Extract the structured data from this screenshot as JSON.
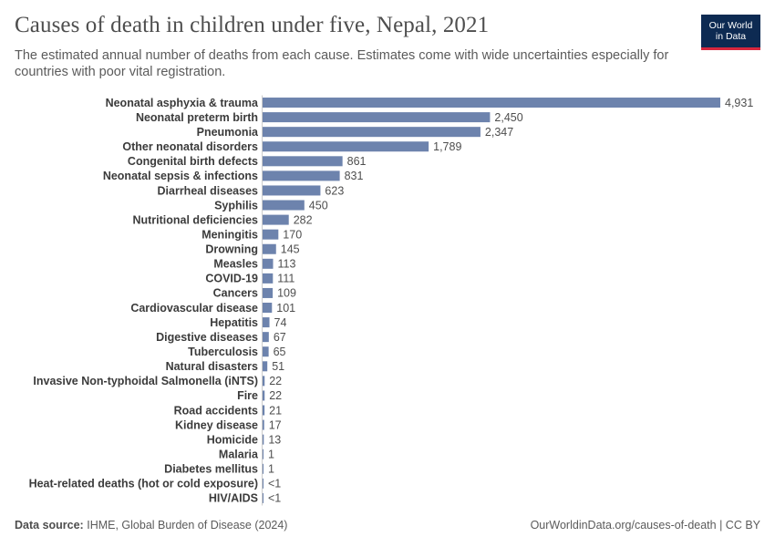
{
  "header": {
    "title": "Causes of death in children under five, Nepal, 2021",
    "subtitle": "The estimated annual number of deaths from each cause. Estimates come with wide uncertainties especially for countries with poor vital registration."
  },
  "logo": {
    "line1": "Our World",
    "line2": "in Data",
    "bg_color": "#0d2a52",
    "accent_color": "#d7263d"
  },
  "footer": {
    "source_label": "Data source:",
    "source_text": "IHME, Global Burden of Disease (2024)",
    "url": "OurWorldinData.org/causes-of-death | CC BY"
  },
  "chart_data": {
    "type": "bar",
    "orientation": "horizontal",
    "title": "Causes of death in children under five, Nepal, 2021",
    "xlabel": "",
    "ylabel": "",
    "bar_color": "#6d83ad",
    "categories": [
      "Neonatal asphyxia & trauma",
      "Neonatal preterm birth",
      "Pneumonia",
      "Other neonatal disorders",
      "Congenital birth defects",
      "Neonatal sepsis & infections",
      "Diarrheal diseases",
      "Syphilis",
      "Nutritional deficiencies",
      "Meningitis",
      "Drowning",
      "Measles",
      "COVID-19",
      "Cancers",
      "Cardiovascular disease",
      "Hepatitis",
      "Digestive diseases",
      "Tuberculosis",
      "Natural disasters",
      "Invasive Non-typhoidal Salmonella (iNTS)",
      "Fire",
      "Road accidents",
      "Kidney disease",
      "Homicide",
      "Malaria",
      "Diabetes mellitus",
      "Heat-related deaths (hot or cold exposure)",
      "HIV/AIDS"
    ],
    "values": [
      4931,
      2450,
      2347,
      1789,
      861,
      831,
      623,
      450,
      282,
      170,
      145,
      113,
      111,
      109,
      101,
      74,
      67,
      65,
      51,
      22,
      22,
      21,
      17,
      13,
      1,
      1,
      0.4,
      0.3
    ],
    "value_labels": [
      "4,931",
      "2,450",
      "2,347",
      "1,789",
      "861",
      "831",
      "623",
      "450",
      "282",
      "170",
      "145",
      "113",
      "111",
      "109",
      "101",
      "74",
      "67",
      "65",
      "51",
      "22",
      "22",
      "21",
      "17",
      "13",
      "1",
      "1",
      "<1",
      "<1"
    ],
    "xlim": [
      0,
      4931
    ]
  }
}
